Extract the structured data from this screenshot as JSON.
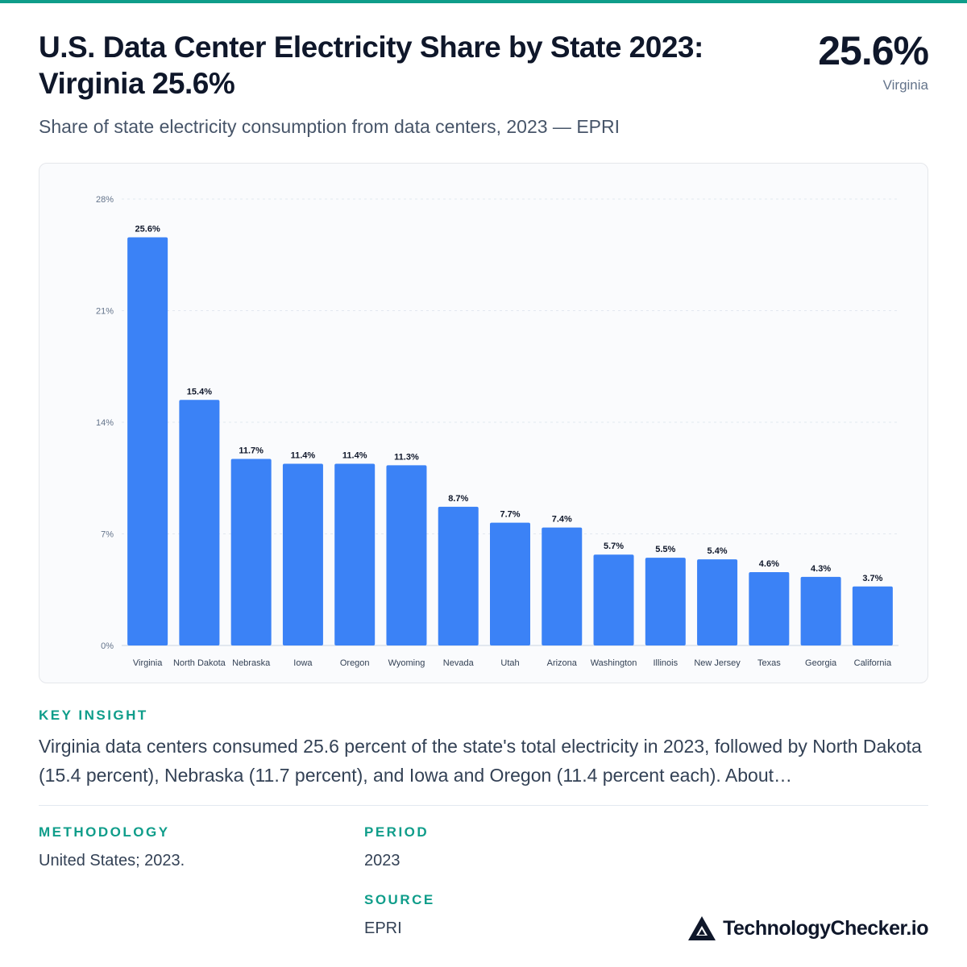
{
  "header": {
    "title": "U.S. Data Center Electricity Share by State 2023: Virginia 25.6%",
    "subtitle": "Share of state electricity consumption from data centers, 2023 — EPRI",
    "kpi_value": "25.6%",
    "kpi_label": "Virginia"
  },
  "chart_data": {
    "type": "bar",
    "categories": [
      "Virginia",
      "North Dakota",
      "Nebraska",
      "Iowa",
      "Oregon",
      "Wyoming",
      "Nevada",
      "Utah",
      "Arizona",
      "Washington",
      "Illinois",
      "New Jersey",
      "Texas",
      "Georgia",
      "California"
    ],
    "values": [
      25.6,
      15.4,
      11.7,
      11.4,
      11.4,
      11.3,
      8.7,
      7.7,
      7.4,
      5.7,
      5.5,
      5.4,
      4.6,
      4.3,
      3.7
    ],
    "data_labels": [
      "25.6%",
      "15.4%",
      "11.7%",
      "11.4%",
      "11.4%",
      "11.3%",
      "8.7%",
      "7.7%",
      "7.4%",
      "5.7%",
      "5.5%",
      "5.4%",
      "4.6%",
      "4.3%",
      "3.7%"
    ],
    "y_ticks": [
      0,
      7,
      14,
      21,
      28
    ],
    "y_tick_labels": [
      "0%",
      "7%",
      "14%",
      "21%",
      "28%"
    ],
    "ylim": [
      0,
      28
    ],
    "grid": true,
    "bar_color": "#3b82f6"
  },
  "insight": {
    "label": "KEY INSIGHT",
    "text": "Virginia data centers consumed 25.6 percent of the state's total electricity in 2023, followed by North Dakota (15.4 percent), Nebraska (11.7 percent), and Iowa and Oregon (11.4 percent each). About…"
  },
  "meta": {
    "methodology_label": "METHODOLOGY",
    "methodology_value": "United States; 2023.",
    "period_label": "PERIOD",
    "period_value": "2023",
    "source_label": "SOURCE",
    "source_value": "EPRI"
  },
  "brand": {
    "name": "TechnologyChecker.io",
    "logo_icon": "triangle-logo-icon"
  },
  "colors": {
    "accent": "#0f9d8a",
    "bar": "#3b82f6"
  }
}
